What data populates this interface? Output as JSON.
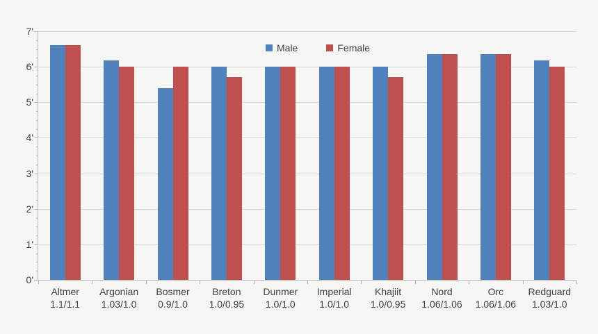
{
  "chart_data": {
    "type": "bar",
    "title": "",
    "xlabel": "",
    "ylabel": "",
    "ylim": [
      0,
      7
    ],
    "ytick_labels": [
      "0'",
      "1'",
      "2'",
      "3'",
      "4'",
      "5'",
      "6'",
      "7'"
    ],
    "grid": true,
    "legend_position": "top-center",
    "categories": [
      "Altmer",
      "Argonian",
      "Bosmer",
      "Breton",
      "Dunmer",
      "Imperial",
      "Khajiit",
      "Nord",
      "Orc",
      "Redguard"
    ],
    "category_sublabels": [
      "1.1/1.1",
      "1.03/1.0",
      "0.9/1.0",
      "1.0/0.95",
      "1.0/1.0",
      "1.0/1.0",
      "1.0/0.95",
      "1.06/1.06",
      "1.06/1.06",
      "1.03/1.0"
    ],
    "series": [
      {
        "name": "Male",
        "color": "#4f81bd",
        "values": [
          6.6,
          6.18,
          5.4,
          6.0,
          6.0,
          6.0,
          6.0,
          6.36,
          6.36,
          6.18
        ]
      },
      {
        "name": "Female",
        "color": "#c0504d",
        "values": [
          6.6,
          6.0,
          6.0,
          5.7,
          6.0,
          6.0,
          5.7,
          6.36,
          6.36,
          6.0
        ]
      }
    ]
  },
  "colors": {
    "background": "#f6f6f4",
    "gridline": "#d9d9d7",
    "axis": "#b9b9b7",
    "text": "#3f3f3f"
  }
}
